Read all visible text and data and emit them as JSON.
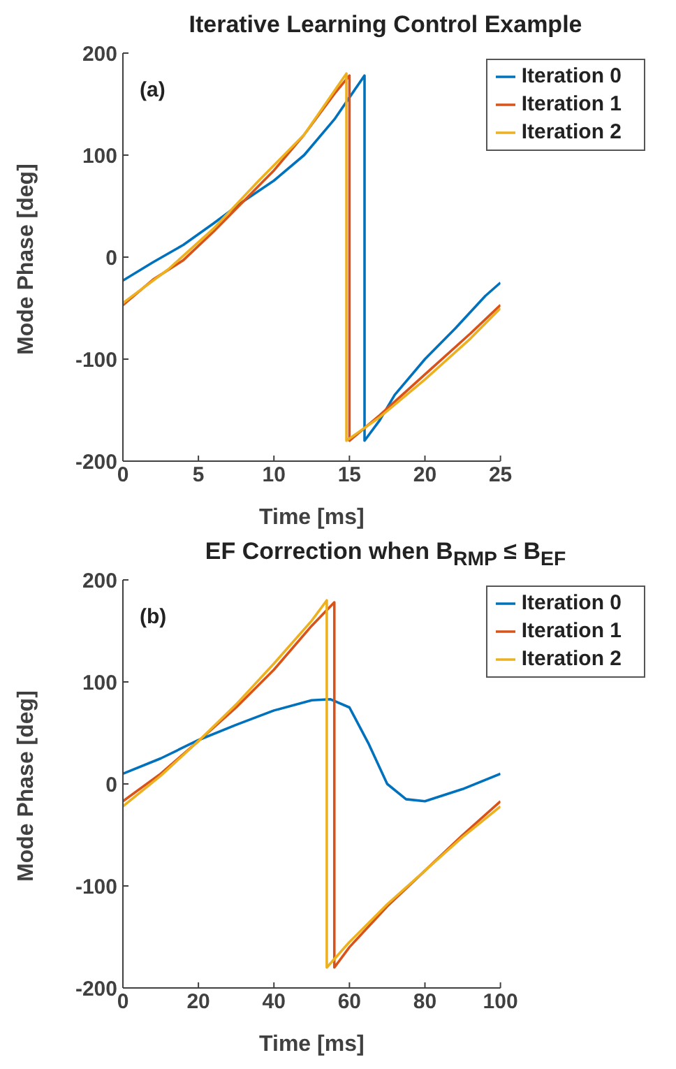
{
  "chart_data": [
    {
      "type": "line",
      "title": "Iterative Learning Control Example",
      "xlabel": "Time [ms]",
      "ylabel": "Mode Phase [deg]",
      "xlim": [
        0,
        25
      ],
      "xticks": [
        0,
        5,
        10,
        15,
        20,
        25
      ],
      "ylim": [
        -200,
        200
      ],
      "yticks": [
        -200,
        -100,
        0,
        100,
        200
      ],
      "grid": false,
      "legend": "top right",
      "marker": "none",
      "line_style": "solid",
      "annotations": [
        "(a)"
      ],
      "series": [
        {
          "name": "Iteration 0",
          "color": "#0072bd",
          "x": [
            0,
            2,
            4,
            6,
            8,
            10,
            12,
            14,
            16,
            16,
            17,
            18,
            20,
            22,
            24,
            25
          ],
          "values": [
            -23,
            -5,
            12,
            33,
            55,
            75,
            100,
            135,
            178,
            -180,
            -160,
            -135,
            -100,
            -70,
            -38,
            -25
          ]
        },
        {
          "name": "Iteration 1",
          "color": "#d95319",
          "x": [
            0,
            2,
            4,
            6,
            8,
            10,
            12,
            14,
            15,
            15,
            17,
            20,
            23,
            25
          ],
          "values": [
            -47,
            -22,
            -3,
            25,
            55,
            85,
            120,
            160,
            178,
            -180,
            -155,
            -115,
            -75,
            -47
          ]
        },
        {
          "name": "Iteration 2",
          "color": "#edb120",
          "x": [
            0,
            3,
            6,
            9,
            12,
            14.8,
            14.8,
            17,
            20,
            23,
            25
          ],
          "values": [
            -45,
            -12,
            28,
            75,
            120,
            180,
            -180,
            -157,
            -120,
            -80,
            -50
          ]
        }
      ]
    },
    {
      "type": "line",
      "title": "EF Correction when B$_{RMP}$ ≤ B$_{EF}$",
      "xlabel": "Time [ms]",
      "ylabel": "Mode Phase [deg]",
      "xlim": [
        0,
        100
      ],
      "xticks": [
        0,
        20,
        40,
        60,
        80,
        100
      ],
      "ylim": [
        -200,
        200
      ],
      "yticks": [
        -200,
        -100,
        0,
        100,
        200
      ],
      "grid": false,
      "legend": "top right",
      "marker": "none",
      "line_style": "solid",
      "annotations": [
        "(b)"
      ],
      "series": [
        {
          "name": "Iteration 0",
          "color": "#0072bd",
          "x": [
            0,
            10,
            20,
            30,
            40,
            50,
            55,
            60,
            65,
            70,
            75,
            80,
            90,
            100
          ],
          "values": [
            10,
            25,
            43,
            58,
            72,
            82,
            83,
            75,
            40,
            0,
            -15,
            -17,
            -5,
            10
          ]
        },
        {
          "name": "Iteration 1",
          "color": "#d95319",
          "x": [
            0,
            10,
            20,
            30,
            40,
            50,
            56,
            56,
            60,
            70,
            80,
            90,
            100
          ],
          "values": [
            -17,
            10,
            42,
            75,
            112,
            155,
            178,
            -180,
            -160,
            -120,
            -85,
            -50,
            -17
          ]
        },
        {
          "name": "Iteration 2",
          "color": "#edb120",
          "x": [
            0,
            10,
            20,
            30,
            40,
            50,
            54,
            54,
            60,
            70,
            80,
            90,
            100
          ],
          "values": [
            -22,
            8,
            42,
            78,
            118,
            160,
            180,
            -180,
            -155,
            -118,
            -85,
            -52,
            -22
          ]
        }
      ]
    }
  ]
}
